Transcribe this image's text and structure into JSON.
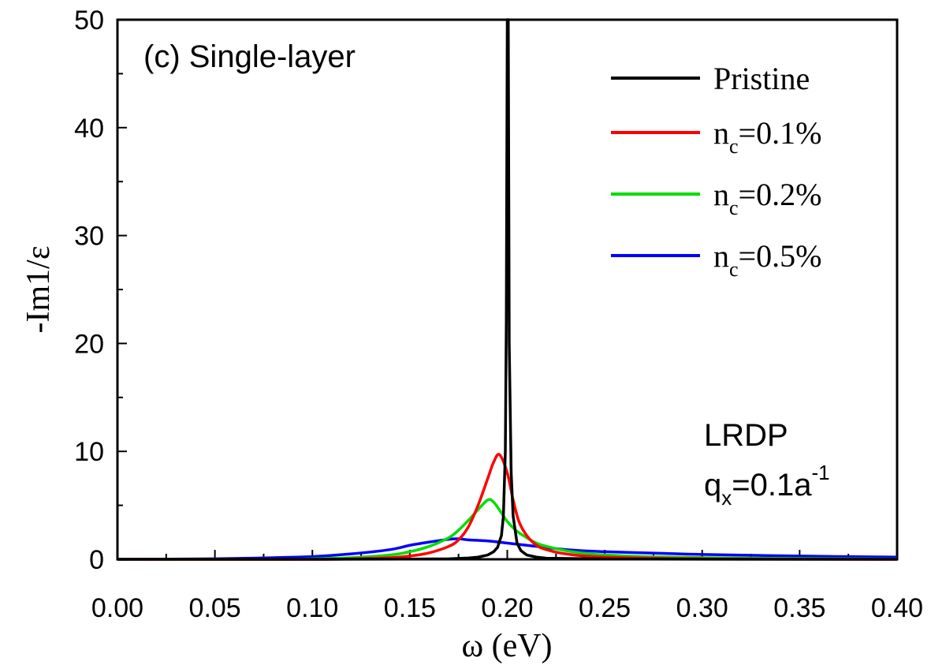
{
  "chart_data": {
    "type": "line",
    "title": "",
    "panel_label": "(c) Single-layer",
    "xlabel": "ω (eV)",
    "ylabel": "-Im1/ε",
    "xlim": [
      0.0,
      0.4
    ],
    "ylim": [
      0,
      50
    ],
    "x_ticks": [
      "0.00",
      "0.05",
      "0.10",
      "0.15",
      "0.20",
      "0.25",
      "0.30",
      "0.35",
      "0.40"
    ],
    "y_ticks": [
      "0",
      "10",
      "20",
      "30",
      "40",
      "50"
    ],
    "grid": false,
    "legend_position": "top-right",
    "annotation": {
      "line1": "LRDP",
      "q_main": "q",
      "q_sub": "x",
      "q_rest": "=0.1a",
      "q_sup": "-1"
    },
    "series": [
      {
        "name": "Pristine",
        "legend": {
          "main": "Pristine",
          "sub": "",
          "rest": ""
        },
        "color": "#000000",
        "x": [
          0.0,
          0.05,
          0.1,
          0.15,
          0.17,
          0.18,
          0.185,
          0.19,
          0.193,
          0.195,
          0.197,
          0.198,
          0.199,
          0.1995,
          0.2,
          0.2005,
          0.201,
          0.202,
          0.203,
          0.205,
          0.207,
          0.21,
          0.215,
          0.22,
          0.25,
          0.3,
          0.35,
          0.4
        ],
        "y": [
          0.0,
          0.0,
          0.0,
          0.02,
          0.05,
          0.12,
          0.2,
          0.4,
          0.7,
          1.1,
          2.2,
          4.0,
          10.0,
          22.0,
          50.0,
          50.0,
          20.0,
          8.0,
          4.0,
          1.5,
          0.8,
          0.4,
          0.2,
          0.1,
          0.03,
          0.01,
          0.0,
          0.0
        ]
      },
      {
        "name": "n_c=0.1%",
        "legend": {
          "main": "n",
          "sub": "c",
          "rest": "=0.1%"
        },
        "color": "#ff0000",
        "x": [
          0.0,
          0.1,
          0.12,
          0.14,
          0.15,
          0.16,
          0.17,
          0.175,
          0.18,
          0.185,
          0.19,
          0.193,
          0.196,
          0.2,
          0.203,
          0.206,
          0.21,
          0.215,
          0.22,
          0.23,
          0.25,
          0.3,
          0.35,
          0.4
        ],
        "y": [
          0.0,
          0.0,
          0.05,
          0.15,
          0.3,
          0.6,
          1.2,
          1.8,
          3.0,
          5.0,
          7.5,
          9.0,
          9.7,
          8.0,
          5.5,
          3.5,
          2.2,
          1.3,
          0.9,
          0.5,
          0.2,
          0.05,
          0.02,
          0.0
        ]
      },
      {
        "name": "n_c=0.2%",
        "legend": {
          "main": "n",
          "sub": "c",
          "rest": "=0.2%"
        },
        "color": "#00dd00",
        "x": [
          0.0,
          0.08,
          0.1,
          0.12,
          0.14,
          0.15,
          0.16,
          0.17,
          0.175,
          0.18,
          0.185,
          0.19,
          0.193,
          0.197,
          0.2,
          0.205,
          0.21,
          0.215,
          0.22,
          0.23,
          0.24,
          0.25,
          0.27,
          0.3,
          0.35,
          0.4
        ],
        "y": [
          0.0,
          0.0,
          0.05,
          0.15,
          0.4,
          0.7,
          1.2,
          2.0,
          2.7,
          3.6,
          4.6,
          5.5,
          5.3,
          4.3,
          3.5,
          2.6,
          2.0,
          1.5,
          1.2,
          0.8,
          0.55,
          0.4,
          0.25,
          0.15,
          0.07,
          0.03
        ]
      },
      {
        "name": "n_c=0.5%",
        "legend": {
          "main": "n",
          "sub": "c",
          "rest": "=0.5%"
        },
        "color": "#0000ff",
        "x": [
          0.0,
          0.05,
          0.08,
          0.1,
          0.12,
          0.14,
          0.15,
          0.16,
          0.17,
          0.175,
          0.18,
          0.19,
          0.2,
          0.21,
          0.22,
          0.23,
          0.25,
          0.28,
          0.3,
          0.35,
          0.4
        ],
        "y": [
          0.0,
          0.05,
          0.15,
          0.25,
          0.5,
          0.9,
          1.3,
          1.6,
          1.85,
          1.9,
          1.8,
          1.7,
          1.5,
          1.3,
          1.1,
          0.9,
          0.7,
          0.55,
          0.45,
          0.3,
          0.2
        ]
      }
    ]
  }
}
